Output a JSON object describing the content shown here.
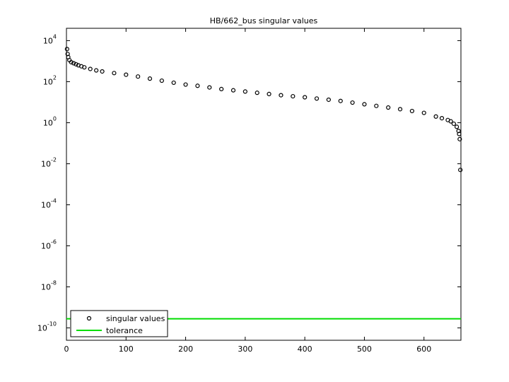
{
  "chart_data": {
    "type": "scatter",
    "title": "HB/662_bus singular values",
    "yscale": "log",
    "xlim": [
      0,
      662
    ],
    "ylim": [
      2.5e-11,
      40000
    ],
    "xticks": [
      0,
      100,
      200,
      300,
      400,
      500,
      600
    ],
    "yticks": [
      {
        "value": 1e-10,
        "label": "10",
        "exp": "-10"
      },
      {
        "value": 1e-08,
        "label": "10",
        "exp": "-8"
      },
      {
        "value": 1e-06,
        "label": "10",
        "exp": "-6"
      },
      {
        "value": 0.0001,
        "label": "10",
        "exp": "-4"
      },
      {
        "value": 0.01,
        "label": "10",
        "exp": "-2"
      },
      {
        "value": 1,
        "label": "10",
        "exp": "0"
      },
      {
        "value": 100,
        "label": "10",
        "exp": "2"
      },
      {
        "value": 10000,
        "label": "10",
        "exp": "4"
      }
    ],
    "legend": "lower left",
    "series": [
      {
        "name": "singular values",
        "color": "#000000",
        "marker": "circle",
        "x": [
          1,
          2,
          3,
          5,
          8,
          12,
          16,
          20,
          25,
          30,
          40,
          50,
          60,
          80,
          100,
          120,
          140,
          160,
          180,
          200,
          220,
          240,
          260,
          280,
          300,
          320,
          340,
          360,
          380,
          400,
          420,
          440,
          460,
          480,
          500,
          520,
          540,
          560,
          580,
          600,
          620,
          630,
          640,
          645,
          650,
          655,
          658,
          659,
          660,
          661
        ],
        "values": [
          3890,
          2240,
          1580,
          1120,
          891,
          794,
          708,
          631,
          562,
          501,
          417,
          355,
          316,
          263,
          219,
          178,
          141,
          112,
          89.1,
          72.4,
          63.1,
          52.5,
          43.7,
          38.0,
          33.1,
          28.8,
          25.1,
          21.9,
          19.5,
          17.4,
          15.1,
          13.2,
          11.5,
          9.55,
          7.94,
          6.61,
          5.5,
          4.57,
          3.72,
          3.02,
          2.0,
          1.66,
          1.35,
          1.17,
          0.891,
          0.631,
          0.398,
          0.282,
          0.158,
          0.00501
        ]
      },
      {
        "name": "tolerance",
        "color": "#00dd00",
        "marker": "line",
        "x": [
          0,
          662
        ],
        "values": [
          2.8e-10,
          2.8e-10
        ]
      }
    ]
  }
}
